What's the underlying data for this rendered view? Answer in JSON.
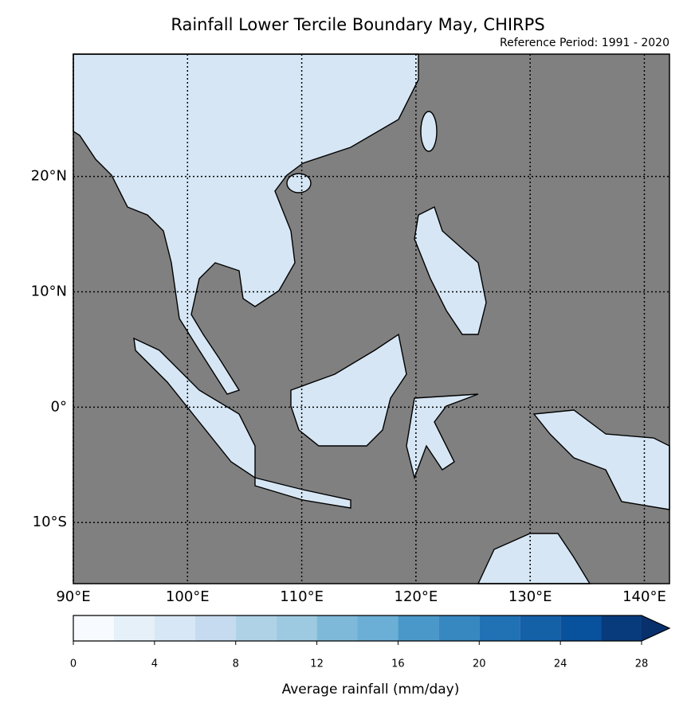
{
  "map": {
    "title": "Rainfall Lower Tercile Boundary May, CHIRPS",
    "subtitle": "Reference Period: 1991 - 2020",
    "xlim": [
      90,
      142.2
    ],
    "ylim": [
      -15.3,
      30.6
    ],
    "xticks": [
      {
        "value": 90,
        "label": "90°E"
      },
      {
        "value": 100,
        "label": "100°E"
      },
      {
        "value": 110,
        "label": "110°E"
      },
      {
        "value": 120,
        "label": "120°E"
      },
      {
        "value": 130,
        "label": "130°E"
      },
      {
        "value": 140,
        "label": "140°E"
      }
    ],
    "yticks": [
      {
        "value": 20,
        "label": "20°N"
      },
      {
        "value": 10,
        "label": "10°N"
      },
      {
        "value": 0,
        "label": "0°"
      },
      {
        "value": -10,
        "label": "10°S"
      }
    ],
    "grid": true
  },
  "colorbar": {
    "label": "Average rainfall (mm/day)",
    "levels": [
      0,
      2,
      4,
      6,
      8,
      10,
      12,
      14,
      16,
      18,
      20,
      22,
      24,
      26,
      28
    ],
    "ticks": [
      0,
      4,
      8,
      12,
      16,
      20,
      24,
      28
    ],
    "colors": [
      "#f7fbff",
      "#e6f0f9",
      "#d8e7f5",
      "#c6dbef",
      "#b0d2e7",
      "#9ecae1",
      "#7fb9da",
      "#6baed6",
      "#4a98c9",
      "#3787c0",
      "#2171b5",
      "#1461a8",
      "#08519c",
      "#083b7c"
    ],
    "extend_color": "#08306b"
  }
}
